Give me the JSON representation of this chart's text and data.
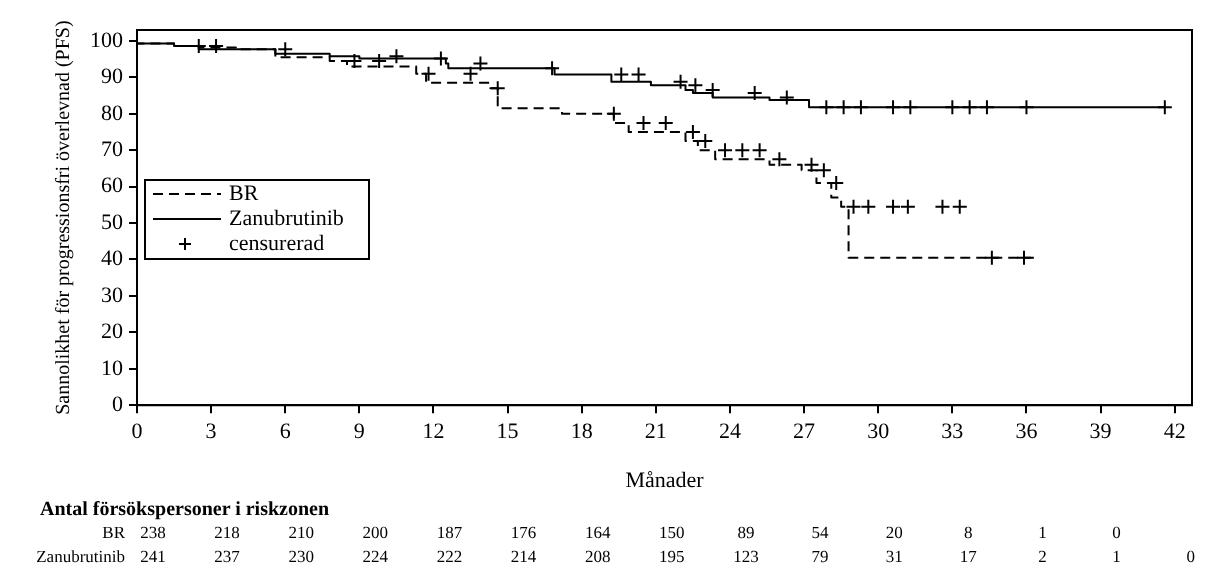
{
  "chart_data": {
    "type": "step",
    "xlabel": "Månader",
    "ylabel": "Sannolikhet för progressionsfri överlevnad (PFS)",
    "xlim": [
      0,
      42.7
    ],
    "xticks": [
      0,
      3,
      6,
      9,
      12,
      15,
      18,
      21,
      24,
      27,
      30,
      33,
      36,
      39,
      42
    ],
    "ylim": [
      0,
      103
    ],
    "yticks": [
      0,
      10,
      20,
      30,
      40,
      50,
      60,
      70,
      80,
      90,
      100
    ],
    "grid": false,
    "legend": "left",
    "series": [
      {
        "name": "BR",
        "type": "step",
        "color": "#000000",
        "line_style": "dashed",
        "x": [
          0,
          1.5,
          2.5,
          4,
          5.6,
          7.8,
          8.5,
          11.3,
          11.7,
          14.3,
          14.6,
          17.2,
          19.3,
          19.9,
          22.2,
          22.7,
          23.4,
          25.6,
          26.9,
          27.5,
          28.1,
          28.5,
          28.8,
          33.7,
          36.3
        ],
        "values": [
          100,
          99.3,
          98.6,
          98.2,
          97.7,
          95.5,
          94.5,
          93,
          91,
          88.5,
          87,
          81.5,
          80,
          77.5,
          75,
          72.5,
          70,
          67.5,
          66,
          64.5,
          61,
          57,
          54.5,
          40.5,
          40.5
        ]
      },
      {
        "name": "Zanubrutinib",
        "type": "step",
        "color": "#000000",
        "line_style": "solid",
        "x": [
          0,
          1.5,
          2.5,
          5.6,
          7.8,
          9,
          12.5,
          12.6,
          16.9,
          19.2,
          20.8,
          22.2,
          22.5,
          23.3,
          25.6,
          27.2,
          27.5,
          41.6
        ],
        "values": [
          100,
          99.3,
          98.6,
          97.7,
          96.5,
          95.8,
          95.2,
          93.8,
          92.5,
          90.8,
          88.8,
          87.8,
          86.5,
          85.7,
          84.5,
          83.8,
          81.8,
          81.8
        ]
      },
      {
        "name": "censurerad",
        "type": "scatter",
        "color": "#000000",
        "marker": "cross",
        "x": [
          2.5,
          3.2,
          6,
          8.8,
          9.8,
          11.8,
          13.5,
          14.6,
          19.3,
          20.5,
          21.4,
          22.5,
          23,
          23.8,
          24.5,
          25.2,
          26,
          27.3,
          27.8,
          28.3,
          29,
          29.6,
          30.6,
          31.2,
          32.6,
          33.3,
          34.6,
          35.9
        ],
        "values": [
          98.6,
          98.6,
          97.7,
          94.5,
          94.5,
          91,
          91,
          87,
          80,
          77.5,
          77.5,
          75,
          72.5,
          70,
          70,
          70,
          67.5,
          66,
          64.5,
          61,
          54.5,
          54.5,
          54.5,
          54.5,
          54.5,
          54.5,
          40.5,
          40.5
        ]
      },
      {
        "type": "scatter",
        "color": "#000000",
        "marker": "cross",
        "x": [
          10.5,
          12.3,
          13.9,
          16.8,
          19.6,
          20.3,
          22,
          22.6,
          23.3,
          25,
          26.3,
          27.9,
          28.6,
          29.3,
          30.6,
          31.3,
          33,
          33.7,
          34.4,
          36,
          41.6
        ],
        "values": [
          95.8,
          95.2,
          93.8,
          92.5,
          90.8,
          90.8,
          88.8,
          87.8,
          86.5,
          85.7,
          84.5,
          81.8,
          81.8,
          81.8,
          81.8,
          81.8,
          81.8,
          81.8,
          81.8,
          81.8,
          81.8
        ]
      }
    ],
    "annotations": [
      "Antal försökspersoner i riskzonen",
      "BR 238 218 210 200 187 176 164 150 89 54 20 8 1 0",
      "Zanubrutinib 241 237 230 224 222 214 208 195 123 79 31 17 2 1 0"
    ]
  }
}
